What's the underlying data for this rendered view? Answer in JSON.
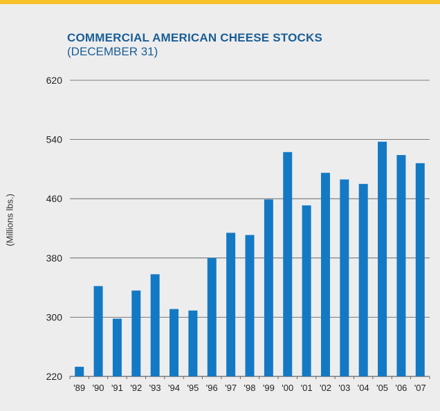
{
  "chart_data": {
    "type": "bar",
    "title": "COMMERCIAL AMERICAN CHEESE STOCKS",
    "subtitle": "(DECEMBER 31)",
    "ylabel": "(Millions lbs.)",
    "xlabel": "",
    "ylim": [
      220,
      620
    ],
    "yticks": [
      220,
      300,
      380,
      460,
      540,
      620
    ],
    "grid": true,
    "categories": [
      "'89",
      "'90",
      "'91",
      "'92",
      "'93",
      "'94",
      "'95",
      "'96",
      "'97",
      "'98",
      "'99",
      "'00",
      "'01",
      "'02",
      "'03",
      "'04",
      "'05",
      "'06",
      "'07"
    ],
    "values": [
      233,
      342,
      298,
      336,
      358,
      311,
      309,
      380,
      414,
      411,
      459,
      523,
      451,
      495,
      486,
      480,
      537,
      519,
      508
    ]
  },
  "colors": {
    "bar": "#1479c4",
    "accent_bar": "#f6c12b",
    "title": "#1a5e94",
    "grid": "#555555",
    "background": "#ededee"
  }
}
